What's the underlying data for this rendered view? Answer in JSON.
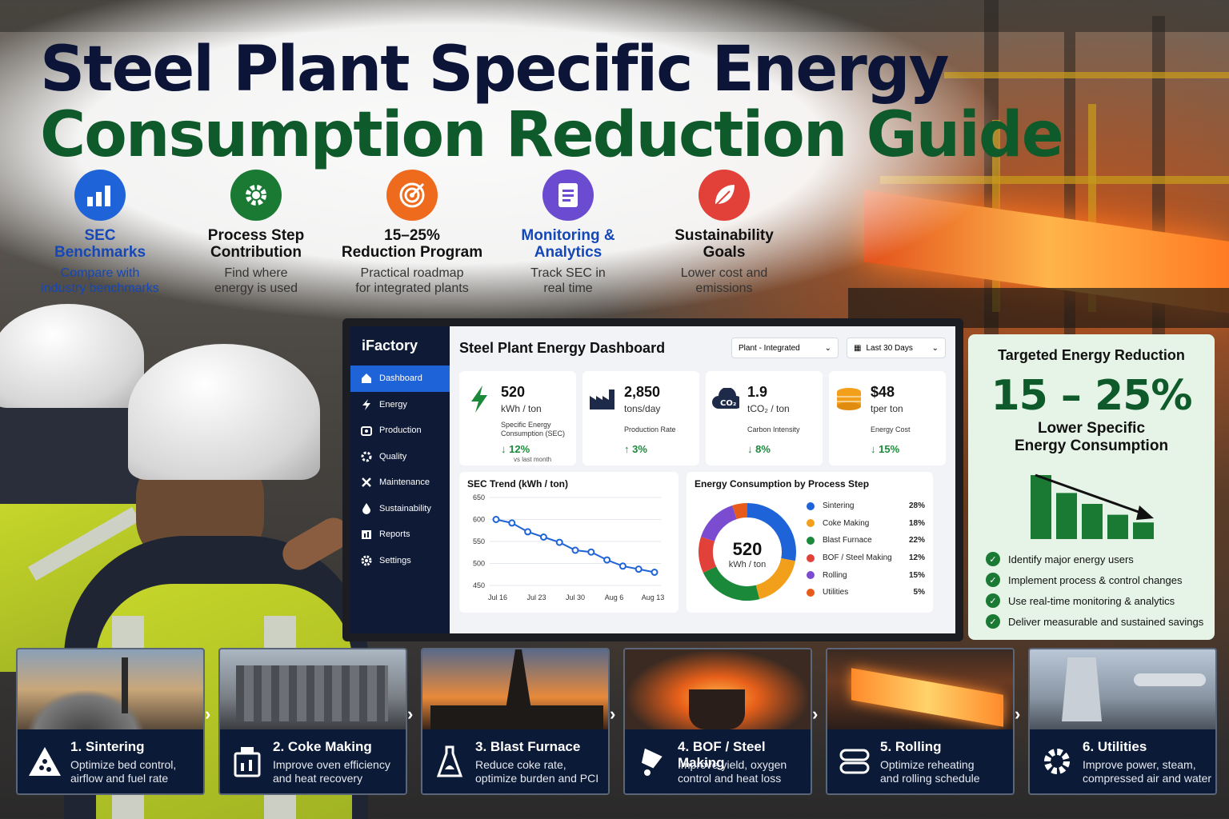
{
  "title": {
    "line1": "Steel Plant Specific Energy",
    "line2": "Consumption Reduction Guide"
  },
  "features": [
    {
      "icon": "bar-chart-icon",
      "color": "#1f63d8",
      "title_color": "#1447b8",
      "title1": "SEC",
      "title2": "Benchmarks",
      "desc1": "Compare with",
      "desc2": "industry benchmarks",
      "desc_color": "#1447b8"
    },
    {
      "icon": "gear-icon",
      "color": "#1a7a34",
      "title_color": "#111111",
      "title1": "Process Step",
      "title2": "Contribution",
      "desc1": "Find where",
      "desc2": "energy is used",
      "desc_color": "#333333"
    },
    {
      "icon": "target-icon",
      "color": "#ee6b1e",
      "title_color": "#111111",
      "title1": "15–25%",
      "title2": "Reduction Program",
      "desc1": "Practical roadmap",
      "desc2": "for integrated plants",
      "desc_color": "#333333"
    },
    {
      "icon": "document-icon",
      "color": "#6b4bd0",
      "title_color": "#1447b8",
      "title1": "Monitoring &",
      "title2": "Analytics",
      "desc1": "Track SEC in",
      "desc2": "real time",
      "desc_color": "#333333"
    },
    {
      "icon": "leaf-icon",
      "color": "#e2413a",
      "title_color": "#111111",
      "title1": "Sustainability",
      "title2": "Goals",
      "desc1": "Lower cost and",
      "desc2": "emissions",
      "desc_color": "#333333"
    }
  ],
  "dashboard": {
    "brand": "iFactory",
    "title": "Steel Plant Energy Dashboard",
    "plant_select": "Plant - Integrated",
    "date_select": "Last 30 Days",
    "nav": [
      {
        "label": "Dashboard",
        "icon": "home-icon",
        "active": true
      },
      {
        "label": "Energy",
        "icon": "bolt-icon",
        "active": false
      },
      {
        "label": "Production",
        "icon": "camera-icon",
        "active": false
      },
      {
        "label": "Quality",
        "icon": "gear-icon",
        "active": false
      },
      {
        "label": "Maintenance",
        "icon": "tools-icon",
        "active": false
      },
      {
        "label": "Sustainability",
        "icon": "drop-icon",
        "active": false
      },
      {
        "label": "Reports",
        "icon": "reports-icon",
        "active": false
      },
      {
        "label": "Settings",
        "icon": "settings-icon",
        "active": false
      }
    ],
    "kpis": [
      {
        "value": "520",
        "unit": "kWh / ton",
        "label": "Specific Energy Consumption (SEC)",
        "delta": "↓ 12%",
        "sub": "vs last month",
        "icon": "bolt-icon"
      },
      {
        "value": "2,850",
        "unit": "tons/day",
        "label": "Production Rate",
        "delta": "↑ 3%",
        "sub": "",
        "icon": "factory-icon"
      },
      {
        "value": "1.9",
        "unit": "tCO₂ / ton",
        "label": "Carbon Intensity",
        "delta": "↓ 8%",
        "sub": "",
        "icon": "co2-icon"
      },
      {
        "value": "$48",
        "unit": "tper ton",
        "label": "Energy Cost",
        "delta": "↓ 15%",
        "sub": "",
        "icon": "coins-icon"
      }
    ],
    "trend_title": "SEC Trend (kWh / ton)",
    "donut_title": "Energy Consumption by Process Step",
    "donut_value": "520",
    "donut_unit": "kWh / ton"
  },
  "chart_data": [
    {
      "type": "line",
      "title": "SEC Trend (kWh / ton)",
      "xlabel": "",
      "ylabel": "",
      "x_ticks": [
        "Jul 16",
        "Jul 23",
        "Jul 30",
        "Aug 6",
        "Aug 13"
      ],
      "y_ticks": [
        650,
        600,
        550,
        500,
        450
      ],
      "ylim": [
        450,
        650
      ],
      "grid": true,
      "color": "#1f63d8",
      "x": [
        0,
        1,
        2,
        3,
        4,
        5,
        6,
        7,
        8,
        9,
        10
      ],
      "values": [
        600,
        592,
        572,
        560,
        548,
        530,
        526,
        508,
        494,
        487,
        480
      ]
    },
    {
      "type": "pie",
      "title": "Energy Consumption by Process Step",
      "categories": [
        "Sintering",
        "Coke Making",
        "Blast Furnace",
        "BOF / Steel Making",
        "Rolling",
        "Utilities"
      ],
      "values": [
        28,
        18,
        22,
        12,
        15,
        5
      ],
      "labels": [
        "28%",
        "18%",
        "22%",
        "12%",
        "15%",
        "5%"
      ],
      "colors": [
        "#1f63d8",
        "#f2a01b",
        "#1a8a3a",
        "#e2413a",
        "#7b4bd0",
        "#e85a1a"
      ]
    }
  ],
  "target": {
    "heading": "Targeted Energy Reduction",
    "percent": "15 – 25%",
    "sub1": "Lower Specific",
    "sub2": "Energy Consumption",
    "bars": [
      1.0,
      0.72,
      0.55,
      0.38,
      0.26
    ],
    "checks": [
      "Identify major energy users",
      "Implement process & control changes",
      "Use real-time monitoring & analytics",
      "Deliver measurable and sustained savings"
    ]
  },
  "steps": [
    {
      "title": "1. Sintering",
      "d1": "Optimize bed control,",
      "d2": "airflow and fuel rate",
      "icon": "sinter-icon"
    },
    {
      "title": "2. Coke Making",
      "d1": "Improve oven efficiency",
      "d2": "and heat recovery",
      "icon": "oven-icon"
    },
    {
      "title": "3. Blast Furnace",
      "d1": "Reduce coke rate,",
      "d2": "optimize burden and PCI",
      "icon": "furnace-icon"
    },
    {
      "title": "4. BOF / Steel Making",
      "d1": "Improve yield, oxygen",
      "d2": "control and heat loss",
      "icon": "ladle-icon"
    },
    {
      "title": "5. Rolling",
      "d1": "Optimize reheating",
      "d2": "and rolling schedule",
      "icon": "rollers-icon"
    },
    {
      "title": "6. Utilities",
      "d1": "Improve power, steam,",
      "d2": "compressed air and water",
      "icon": "gear-icon"
    }
  ]
}
